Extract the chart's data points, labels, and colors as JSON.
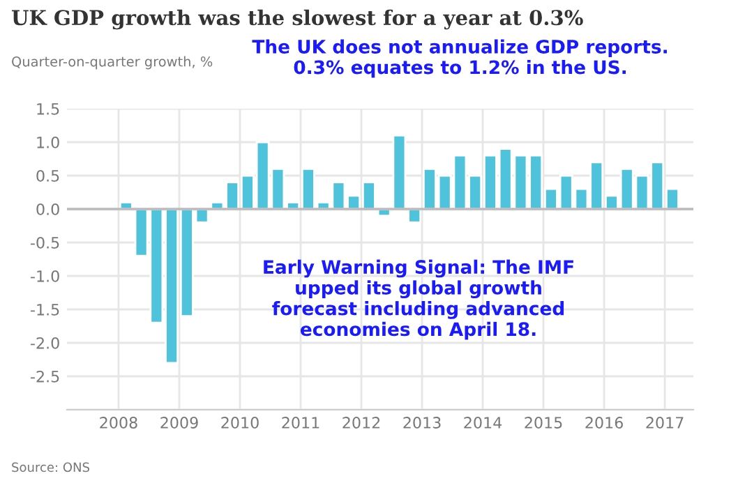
{
  "chart_data": {
    "type": "bar",
    "title": "UK GDP growth was the slowest for a year at 0.3%",
    "ylabel": "Quarter-on-quarter growth, %",
    "x": [
      2008.125,
      2008.375,
      2008.625,
      2008.875,
      2009.125,
      2009.375,
      2009.625,
      2009.875,
      2010.125,
      2010.375,
      2010.625,
      2010.875,
      2011.125,
      2011.375,
      2011.625,
      2011.875,
      2012.125,
      2012.375,
      2012.625,
      2012.875,
      2013.125,
      2013.375,
      2013.625,
      2013.875,
      2014.125,
      2014.375,
      2014.625,
      2014.875,
      2015.125,
      2015.375,
      2015.625,
      2015.875,
      2016.125,
      2016.375,
      2016.625,
      2016.875,
      2017.125
    ],
    "values": [
      0.1,
      -0.7,
      -1.7,
      -2.3,
      -1.6,
      -0.2,
      0.1,
      0.4,
      0.5,
      1.0,
      0.6,
      0.1,
      0.6,
      0.1,
      0.4,
      0.2,
      0.4,
      -0.1,
      1.1,
      -0.2,
      0.6,
      0.5,
      0.8,
      0.5,
      0.8,
      0.9,
      0.8,
      0.8,
      0.3,
      0.5,
      0.3,
      0.7,
      0.2,
      0.6,
      0.5,
      0.7,
      0.3
    ],
    "color": "#4fc3dc",
    "xlim": [
      2007.15,
      2017.47
    ],
    "xticks": [
      2008,
      2009,
      2010,
      2011,
      2012,
      2013,
      2014,
      2015,
      2016,
      2017
    ],
    "ylim": [
      -3.0,
      1.5
    ],
    "yticks": [
      {
        "value": -3,
        "label": null
      },
      -2.5,
      {
        "value": -2,
        "label": "-2.0"
      },
      -1.5,
      {
        "value": -1,
        "label": "-1.0"
      },
      -0.5,
      {
        "value": 0,
        "label": "0.0"
      },
      0.5,
      {
        "value": 1,
        "label": "1.0"
      },
      1.5
    ],
    "grid": true,
    "ref_lines": [
      {
        "axis": "y",
        "value": 0,
        "label": null,
        "color": "#bbbbbb"
      }
    ],
    "annotations": [
      {
        "text": "The UK does not annualize GDP reports.\n0.3% equates to 1.2% in the US."
      },
      {
        "text": "Early Warning Signal: The IMF\nupped its global growth\nforecast including advanced\neconomies on April 18."
      },
      {
        "text": "Source: ONS"
      }
    ]
  }
}
